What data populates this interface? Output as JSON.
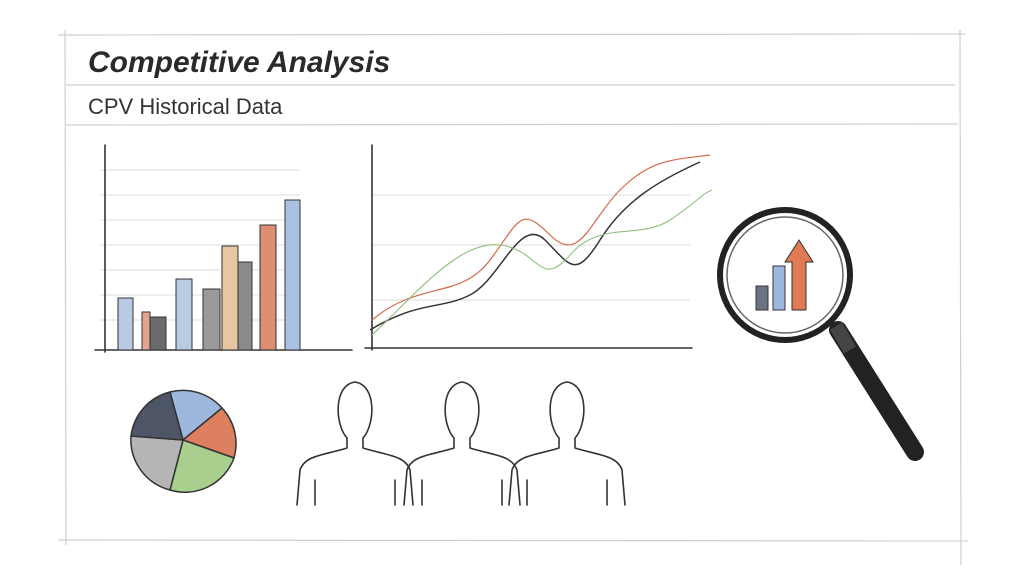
{
  "header": {
    "title": "Competitive Analysis",
    "subtitle": "CPV Historical Data"
  }
}
